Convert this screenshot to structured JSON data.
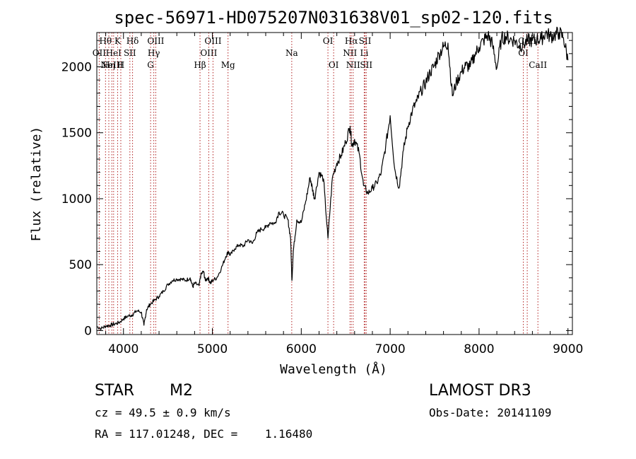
{
  "chart_data": {
    "type": "line",
    "title": "spec-56971-HD075207N031638V01_sp02-120.fits",
    "xlabel": "Wavelength (Å)",
    "ylabel": "Flux (relative)",
    "xlim": [
      3700,
      9050
    ],
    "ylim": [
      -30,
      2260
    ],
    "xticks": [
      4000,
      5000,
      6000,
      7000,
      8000,
      9000
    ],
    "yticks": [
      0,
      500,
      1000,
      1500,
      2000
    ],
    "xtick_labels": [
      "4000",
      "5000",
      "6000",
      "7000",
      "8000",
      "9000"
    ],
    "ytick_labels": [
      "0",
      "500",
      "1000",
      "1500",
      "2000"
    ],
    "grid": false,
    "series": [
      {
        "name": "spectrum",
        "color": "#000000",
        "x": [
          3700,
          3750,
          3800,
          3850,
          3900,
          3950,
          4000,
          4050,
          4100,
          4150,
          4200,
          4230,
          4260,
          4300,
          4350,
          4400,
          4450,
          4500,
          4550,
          4600,
          4650,
          4700,
          4750,
          4780,
          4800,
          4850,
          4870,
          4900,
          4920,
          4950,
          4980,
          5000,
          5050,
          5100,
          5150,
          5180,
          5200,
          5250,
          5300,
          5350,
          5400,
          5450,
          5500,
          5550,
          5600,
          5650,
          5700,
          5750,
          5800,
          5850,
          5880,
          5895,
          5910,
          5950,
          6000,
          6050,
          6100,
          6130,
          6150,
          6200,
          6250,
          6300,
          6350,
          6400,
          6450,
          6500,
          6550,
          6570,
          6600,
          6650,
          6700,
          6750,
          6800,
          6850,
          6900,
          6950,
          7000,
          7050,
          7100,
          7150,
          7200,
          7250,
          7300,
          7350,
          7400,
          7450,
          7500,
          7550,
          7600,
          7650,
          7700,
          7750,
          7800,
          7850,
          7900,
          7950,
          8000,
          8050,
          8100,
          8150,
          8200,
          8250,
          8300,
          8350,
          8400,
          8450,
          8500,
          8550,
          8600,
          8650,
          8700,
          8750,
          8800,
          8850,
          8900,
          8950,
          9000
        ],
        "y": [
          30,
          15,
          35,
          40,
          50,
          60,
          90,
          110,
          120,
          150,
          140,
          40,
          160,
          200,
          230,
          260,
          300,
          350,
          380,
          390,
          390,
          380,
          400,
          330,
          360,
          340,
          420,
          450,
          380,
          400,
          360,
          380,
          400,
          470,
          560,
          600,
          570,
          620,
          650,
          640,
          690,
          660,
          740,
          770,
          780,
          820,
          810,
          900,
          880,
          840,
          700,
          380,
          600,
          840,
          820,
          980,
          1160,
          1060,
          1000,
          1200,
          1150,
          700,
          1160,
          1270,
          1330,
          1430,
          1550,
          1400,
          1450,
          1350,
          1100,
          1040,
          1080,
          1120,
          1200,
          1400,
          1630,
          1230,
          1080,
          1370,
          1550,
          1670,
          1740,
          1820,
          1880,
          1960,
          2010,
          2100,
          2150,
          2180,
          1780,
          1890,
          1960,
          2010,
          2000,
          2090,
          2150,
          2200,
          2240,
          2170,
          1990,
          2210,
          2230,
          2210,
          2200,
          2160,
          2170,
          2200,
          2200,
          2210,
          2210,
          2260,
          2230,
          2240,
          2260,
          2220,
          2050
        ]
      }
    ],
    "lines": [
      {
        "wl": 3727,
        "label": "OII",
        "row": 2
      },
      {
        "wl": 3798,
        "label": "Hθ",
        "row": 1
      },
      {
        "wl": 3835,
        "label": "Hη",
        "row": 3
      },
      {
        "wl": 3869,
        "label": "NeIII",
        "row": 3
      },
      {
        "wl": 3889,
        "label": "HeI",
        "row": 2
      },
      {
        "wl": 3934,
        "label": "K",
        "row": 1
      },
      {
        "wl": 3970,
        "label": "H",
        "row": 3
      },
      {
        "wl": 4072,
        "label": "SII",
        "row": 2
      },
      {
        "wl": 4102,
        "label": "Hδ",
        "row": 1
      },
      {
        "wl": 4305,
        "label": "G",
        "row": 3
      },
      {
        "wl": 4341,
        "label": "Hγ",
        "row": 2
      },
      {
        "wl": 4363,
        "label": "OIII",
        "row": 1
      },
      {
        "wl": 4861,
        "label": "Hβ",
        "row": 3
      },
      {
        "wl": 4959,
        "label": "OIII",
        "row": 2
      },
      {
        "wl": 5007,
        "label": "OIII",
        "row": 1
      },
      {
        "wl": 5176,
        "label": "Mg",
        "row": 3
      },
      {
        "wl": 5893,
        "label": "Na",
        "row": 2
      },
      {
        "wl": 6300,
        "label": "OI",
        "row": 1
      },
      {
        "wl": 6364,
        "label": "OI",
        "row": 3
      },
      {
        "wl": 6548,
        "label": "NII",
        "row": 2
      },
      {
        "wl": 6563,
        "label": "Hα",
        "row": 1
      },
      {
        "wl": 6584,
        "label": "NII",
        "row": 3
      },
      {
        "wl": 6708,
        "label": "Li",
        "row": 2
      },
      {
        "wl": 6717,
        "label": "SII",
        "row": 1
      },
      {
        "wl": 6731,
        "label": "SII",
        "row": 3
      },
      {
        "wl": 8498,
        "label": "OI",
        "row": 2
      },
      {
        "wl": 8542,
        "label": "CaII",
        "row": 1
      },
      {
        "wl": 8662,
        "label": "CaII",
        "row": 3
      }
    ]
  },
  "info": {
    "object_class": "STAR",
    "subclass": "M2",
    "survey": "LAMOST DR3",
    "cz": "cz = 49.5 ± 0.9 km/s",
    "obs_date": "Obs-Date: 20141109",
    "radec": "RA = 117.01248, DEC =    1.16480"
  },
  "colors": {
    "line": "#000000",
    "marker": "#b22222",
    "background": "#ffffff"
  }
}
